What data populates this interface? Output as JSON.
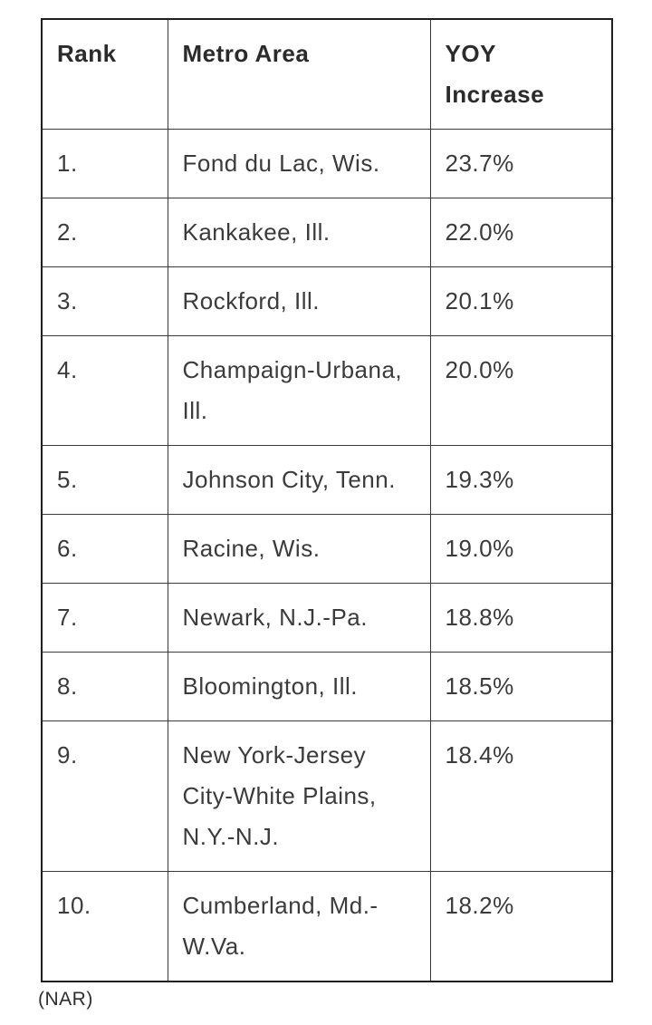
{
  "table": {
    "header": {
      "rank": "Rank",
      "metro": "Metro Area",
      "yoy": "YOY Increase"
    },
    "rows": [
      {
        "rank": "1.",
        "metro": "Fond du Lac, Wis.",
        "yoy": "23.7%"
      },
      {
        "rank": "2.",
        "metro": "Kankakee, Ill.",
        "yoy": "22.0%"
      },
      {
        "rank": "3.",
        "metro": "Rockford, Ill.",
        "yoy": "20.1%"
      },
      {
        "rank": "4.",
        "metro": "Champaign-Urbana, Ill.",
        "yoy": "20.0%"
      },
      {
        "rank": "5.",
        "metro": "Johnson City, Tenn.",
        "yoy": "19.3%"
      },
      {
        "rank": "6.",
        "metro": "Racine, Wis.",
        "yoy": "19.0%"
      },
      {
        "rank": "7.",
        "metro": "Newark, N.J.-Pa.",
        "yoy": "18.8%"
      },
      {
        "rank": "8.",
        "metro": "Bloomington, Ill.",
        "yoy": "18.5%"
      },
      {
        "rank": "9.",
        "metro": "New York-Jersey City-White Plains, N.Y.-N.J.",
        "yoy": "18.4%"
      },
      {
        "rank": "10.",
        "metro": "Cumberland, Md.-W.Va.",
        "yoy": "18.2%"
      }
    ]
  },
  "footer": {
    "source": "(NAR)"
  },
  "colors": {
    "background": "#ffffff",
    "outer_border": "#1f1f1f",
    "inner_border": "#3a3a3a",
    "header_text": "#2b2b2b",
    "body_text": "#3b3b3b",
    "footer_text": "#2e2e2e"
  },
  "chart_data": {
    "type": "table",
    "columns": [
      "Rank",
      "Metro Area",
      "YOY Increase"
    ],
    "rows": [
      [
        "1.",
        "Fond du Lac, Wis.",
        "23.7%"
      ],
      [
        "2.",
        "Kankakee, Ill.",
        "22.0%"
      ],
      [
        "3.",
        "Rockford, Ill.",
        "20.1%"
      ],
      [
        "4.",
        "Champaign-Urbana, Ill.",
        "20.0%"
      ],
      [
        "5.",
        "Johnson City, Tenn.",
        "19.3%"
      ],
      [
        "6.",
        "Racine, Wis.",
        "19.0%"
      ],
      [
        "7.",
        "Newark, N.J.-Pa.",
        "18.8%"
      ],
      [
        "8.",
        "Bloomington, Ill.",
        "18.5%"
      ],
      [
        "9.",
        "New York-Jersey City-White Plains, N.Y.-N.J.",
        "18.4%"
      ],
      [
        "10.",
        "Cumberland, Md.-W.Va.",
        "18.2%"
      ]
    ],
    "yoy_values_percent": [
      23.7,
      22.0,
      20.1,
      20.0,
      19.3,
      19.0,
      18.8,
      18.5,
      18.4,
      18.2
    ],
    "source": "(NAR)"
  }
}
